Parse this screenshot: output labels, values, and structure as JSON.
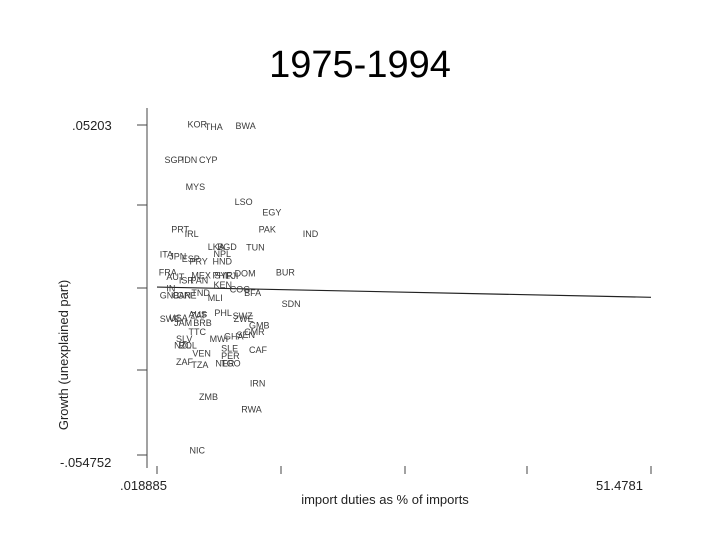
{
  "slide": {
    "title": "1975-1994"
  },
  "chart_data": {
    "type": "scatter",
    "xlabel": "import duties as % of imports",
    "ylabel": "Growth (unexplained part)",
    "xlim": [
      0.018885,
      51.4781
    ],
    "ylim": [
      -0.054752,
      0.05203
    ],
    "x_tick_labels": [
      ".018885",
      "51.4781"
    ],
    "y_tick_labels": [
      ".05203",
      "-.054752"
    ],
    "fit_line": {
      "x": [
        0.018885,
        51.4781
      ],
      "y": [
        0.0005,
        -0.0027
      ]
    },
    "points": [
      {
        "label": "KOR",
        "x": 3.2,
        "y": 0.0511
      },
      {
        "label": "THA",
        "x": 5.0,
        "y": 0.0502
      },
      {
        "label": "BWA",
        "x": 8.2,
        "y": 0.0506
      },
      {
        "label": "SGP",
        "x": 0.8,
        "y": 0.0399
      },
      {
        "label": "IDN",
        "x": 2.6,
        "y": 0.0399
      },
      {
        "label": "CYP",
        "x": 4.4,
        "y": 0.0399
      },
      {
        "label": "MYS",
        "x": 3.0,
        "y": 0.0316
      },
      {
        "label": "LSO",
        "x": 8.1,
        "y": 0.0268
      },
      {
        "label": "EGY",
        "x": 11.0,
        "y": 0.0236
      },
      {
        "label": "PAK",
        "x": 10.6,
        "y": 0.0182
      },
      {
        "label": "IND",
        "x": 15.2,
        "y": 0.0169
      },
      {
        "label": "PRT",
        "x": 1.5,
        "y": 0.0182
      },
      {
        "label": "IRL",
        "x": 2.9,
        "y": 0.0169
      },
      {
        "label": "LKA",
        "x": 5.3,
        "y": 0.0128
      },
      {
        "label": "BGD",
        "x": 6.3,
        "y": 0.0128
      },
      {
        "label": "TUN",
        "x": 9.3,
        "y": 0.0126
      },
      {
        "label": "NPL",
        "x": 5.9,
        "y": 0.0106
      },
      {
        "label": "ITA",
        "x": 0.3,
        "y": 0.0104
      },
      {
        "label": "JPN",
        "x": 1.3,
        "y": 0.0099
      },
      {
        "label": "ESP",
        "x": 2.6,
        "y": 0.0091
      },
      {
        "label": "PRY",
        "x": 3.4,
        "y": 0.0083
      },
      {
        "label": "HND",
        "x": 5.8,
        "y": 0.0083
      },
      {
        "label": "BUR",
        "x": 12.4,
        "y": 0.0048
      },
      {
        "label": "DOM",
        "x": 8.1,
        "y": 0.0045
      },
      {
        "label": "FRA",
        "x": 0.2,
        "y": 0.0048
      },
      {
        "label": "AUT",
        "x": 1.0,
        "y": 0.0034
      },
      {
        "label": "MEX",
        "x": 3.6,
        "y": 0.0039
      },
      {
        "label": "PHL",
        "x": 5.8,
        "y": 0.0039
      },
      {
        "label": "SYR",
        "x": 6.0,
        "y": 0.0039
      },
      {
        "label": "FJI",
        "x": 7.2,
        "y": 0.0037
      },
      {
        "label": "ISR",
        "x": 2.3,
        "y": 0.0024
      },
      {
        "label": "PAN",
        "x": 3.5,
        "y": 0.0024
      },
      {
        "label": "IN",
        "x": 1.0,
        "y": -0.0001
      },
      {
        "label": "KEN",
        "x": 5.9,
        "y": 0.0009
      },
      {
        "label": "COG",
        "x": 7.6,
        "y": -0.0005
      },
      {
        "label": "BFA",
        "x": 9.1,
        "y": -0.0016
      },
      {
        "label": "GNB",
        "x": 0.3,
        "y": -0.0024
      },
      {
        "label": "CAN",
        "x": 1.6,
        "y": -0.0024
      },
      {
        "label": "GRE",
        "x": 2.1,
        "y": -0.0024
      },
      {
        "label": "TND",
        "x": 3.6,
        "y": -0.0016
      },
      {
        "label": "MLI",
        "x": 5.3,
        "y": -0.0031
      },
      {
        "label": "SDN",
        "x": 13.0,
        "y": -0.005
      },
      {
        "label": "PHL",
        "x": 6.0,
        "y": -0.0078
      },
      {
        "label": "SWZ",
        "x": 7.9,
        "y": -0.0088
      },
      {
        "label": "ZWE",
        "x": 8.0,
        "y": -0.0096
      },
      {
        "label": "AUS",
        "x": 3.3,
        "y": -0.0083
      },
      {
        "label": "ZAF",
        "x": 3.5,
        "y": -0.0086
      },
      {
        "label": "USA",
        "x": 1.3,
        "y": -0.0093
      },
      {
        "label": "SWE",
        "x": 0.3,
        "y": -0.0096
      },
      {
        "label": "JAM",
        "x": 1.8,
        "y": -0.0109
      },
      {
        "label": "BRB",
        "x": 3.8,
        "y": -0.0109
      },
      {
        "label": "TTC",
        "x": 3.3,
        "y": -0.0138
      },
      {
        "label": "GMB",
        "x": 9.6,
        "y": -0.0117
      },
      {
        "label": "CMR",
        "x": 9.1,
        "y": -0.0138
      },
      {
        "label": "SEN",
        "x": 8.3,
        "y": -0.0146
      },
      {
        "label": "GHA",
        "x": 7.0,
        "y": -0.0151
      },
      {
        "label": "MWI",
        "x": 5.5,
        "y": -0.0159
      },
      {
        "label": "SLV",
        "x": 2.0,
        "y": -0.0159
      },
      {
        "label": "NZL",
        "x": 1.8,
        "y": -0.018
      },
      {
        "label": "BOL",
        "x": 2.3,
        "y": -0.018
      },
      {
        "label": "SLE",
        "x": 6.7,
        "y": -0.0189
      },
      {
        "label": "CAF",
        "x": 9.6,
        "y": -0.0193
      },
      {
        "label": "VEN",
        "x": 3.7,
        "y": -0.0204
      },
      {
        "label": "PER",
        "x": 6.7,
        "y": -0.0212
      },
      {
        "label": "NER",
        "x": 6.1,
        "y": -0.0236
      },
      {
        "label": "TGO",
        "x": 6.7,
        "y": -0.0236
      },
      {
        "label": "ZAF",
        "x": 2.0,
        "y": -0.0231
      },
      {
        "label": "TZA",
        "x": 3.6,
        "y": -0.0241
      },
      {
        "label": "IRN",
        "x": 9.7,
        "y": -0.0298
      },
      {
        "label": "ZMB",
        "x": 4.4,
        "y": -0.034
      },
      {
        "label": "RWA",
        "x": 8.8,
        "y": -0.0379
      },
      {
        "label": "NIC",
        "x": 3.4,
        "y": -0.0507
      }
    ]
  }
}
